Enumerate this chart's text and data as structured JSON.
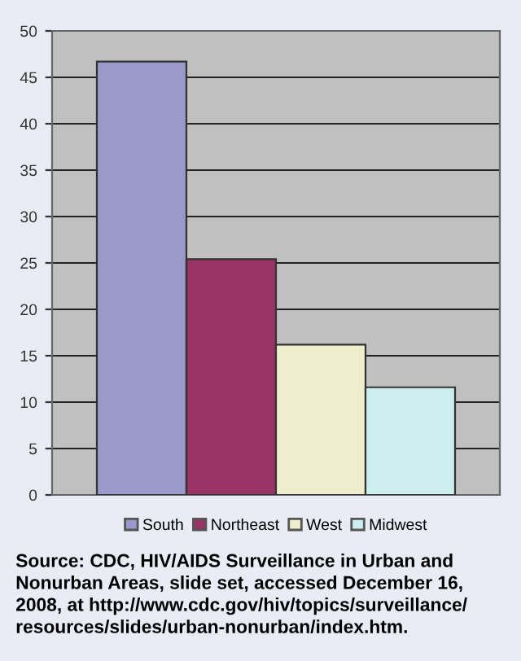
{
  "chart_data": {
    "type": "bar",
    "categories": [
      null
    ],
    "series": [
      {
        "name": "South",
        "color": "#9999cc",
        "values": [
          46.7
        ]
      },
      {
        "name": "Northeast",
        "color": "#993366",
        "values": [
          25.4
        ]
      },
      {
        "name": "West",
        "color": "#eeeecc",
        "values": [
          16.2
        ]
      },
      {
        "name": "Midwest",
        "color": "#cceeee",
        "values": [
          11.6
        ]
      }
    ],
    "ylim": [
      0,
      50
    ],
    "yticks": [
      0,
      5,
      10,
      15,
      20,
      25,
      30,
      35,
      40,
      45,
      50
    ],
    "grid": "y",
    "legend": "bottom",
    "annotations": [
      "Source: CDC, HIV/AIDS Surveillance in Urban and\nNonurban Areas, slide set, accessed December 16,\n2008, at http://www.cdc.gov/hiv/topics/surveillance/\nresources/slides/urban-nonurban/index.htm."
    ]
  }
}
